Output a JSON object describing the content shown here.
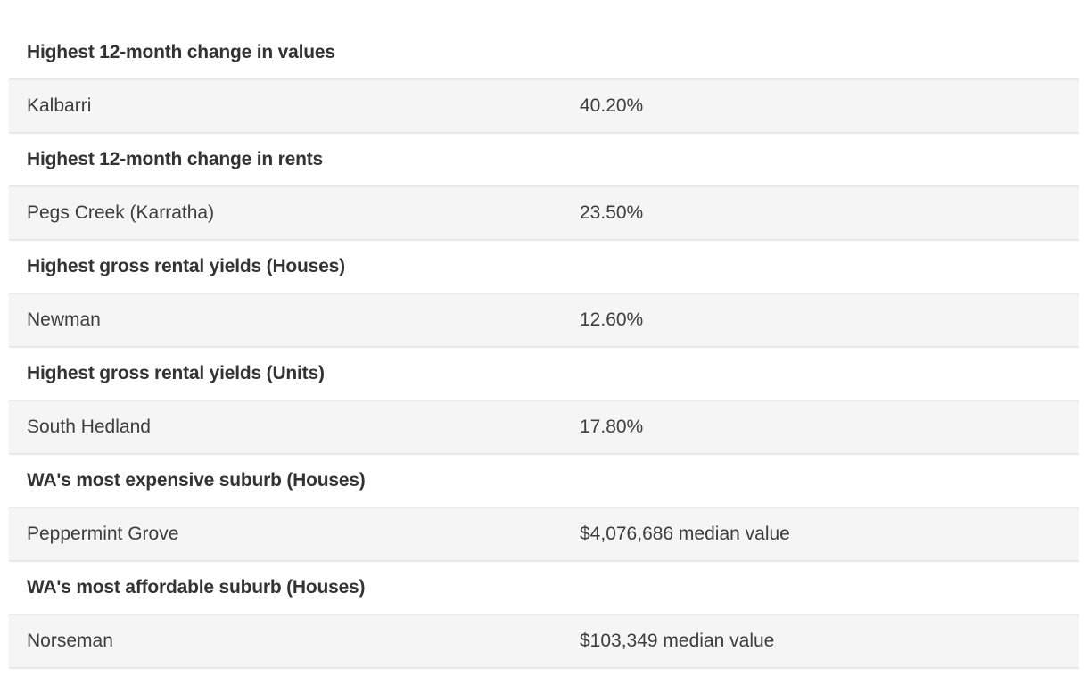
{
  "colors": {
    "page_background": "#ffffff",
    "data_row_background": "#f5f5f5",
    "divider": "#e9e9e9",
    "heading_text": "#333333",
    "body_text": "#3d3d3d"
  },
  "table": {
    "sections": [
      {
        "heading": "Highest 12-month change in values",
        "name": "Kalbarri",
        "value": "40.20%"
      },
      {
        "heading": "Highest 12-month change in rents",
        "name": "Pegs Creek (Karratha)",
        "value": "23.50%"
      },
      {
        "heading": "Highest gross rental yields (Houses)",
        "name": "Newman",
        "value": "12.60%"
      },
      {
        "heading": "Highest gross rental yields (Units)",
        "name": "South Hedland",
        "value": "17.80%"
      },
      {
        "heading": "WA's most expensive suburb (Houses)",
        "name": "Peppermint Grove",
        "value": "$4,076,686 median value"
      },
      {
        "heading": "WA's most affordable suburb (Houses)",
        "name": "Norseman",
        "value": "$103,349 median value"
      }
    ]
  }
}
